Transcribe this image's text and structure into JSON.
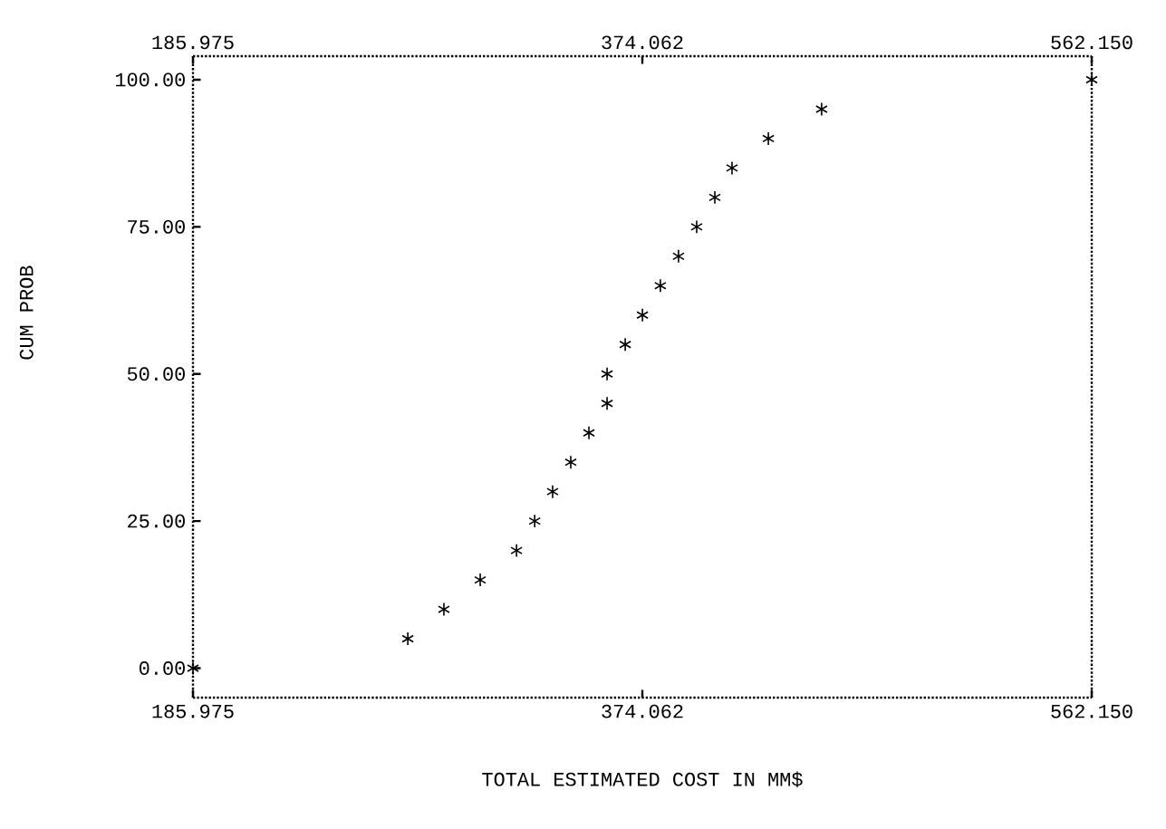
{
  "chart_data": {
    "type": "scatter",
    "xlabel": "TOTAL ESTIMATED COST IN MM$",
    "ylabel": "CUM PROB",
    "marker": "cross",
    "x": [
      185.975,
      275.9,
      291.0,
      306.2,
      321.4,
      329.0,
      336.5,
      344.1,
      351.7,
      359.3,
      359.3,
      366.9,
      374.1,
      381.6,
      389.2,
      396.8,
      404.4,
      411.6,
      426.8,
      449.1,
      562.15
    ],
    "series": [
      {
        "color": "#000000",
        "values": [
          0,
          5,
          10,
          15,
          20,
          25,
          30,
          35,
          40,
          45,
          50,
          55,
          60,
          65,
          70,
          75,
          80,
          85,
          90,
          95,
          100
        ]
      }
    ],
    "xlim": [
      185.975,
      562.15
    ],
    "ylim": [
      -5,
      104
    ],
    "xticks": [
      {
        "value": 185.975,
        "label": "185.975"
      },
      {
        "value": 374.062,
        "label": "374.062"
      },
      {
        "value": 562.15,
        "label": "562.150"
      }
    ],
    "x2lim": [
      185.975,
      562.15
    ],
    "x2ticks": [
      {
        "value": 185.975,
        "label": "185.975"
      },
      {
        "value": 374.062,
        "label": "374.062"
      },
      {
        "value": 562.15,
        "label": "562.150"
      }
    ],
    "yticks": [
      {
        "value": 0,
        "label": "0.00"
      },
      {
        "value": 25,
        "label": "25.00"
      },
      {
        "value": 50,
        "label": "50.00"
      },
      {
        "value": 75,
        "label": "75.00"
      },
      {
        "value": 100,
        "label": "100.00"
      }
    ]
  }
}
